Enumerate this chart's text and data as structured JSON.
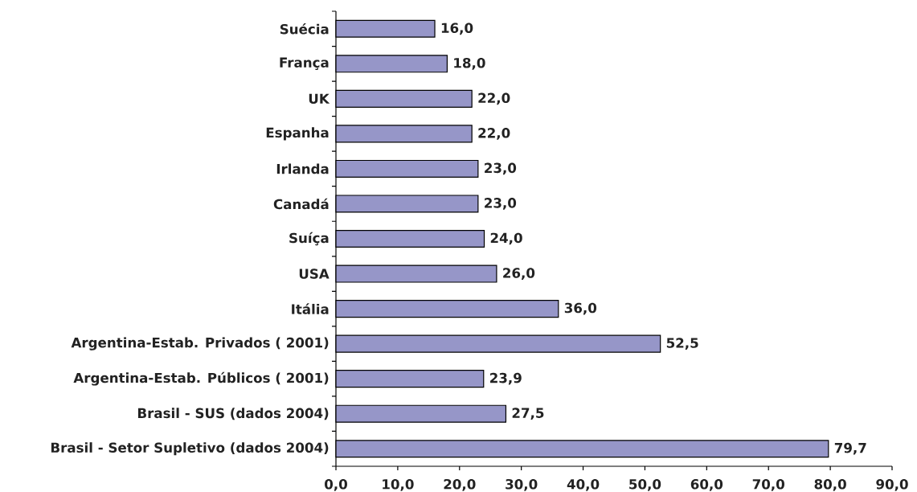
{
  "chart_data": {
    "type": "bar",
    "orientation": "horizontal",
    "categories": [
      "Suécia",
      "França",
      "UK",
      "Espanha",
      "Irlanda",
      "Canadá",
      "Suíça",
      "USA",
      "Itália",
      "Argentina-Estab. Privados ( 2001)",
      "Argentina-Estab. Públicos ( 2001)",
      "Brasil - SUS (dados 2004)",
      "Brasil - Setor Supletivo (dados 2004)"
    ],
    "values": [
      16,
      18,
      22,
      22,
      23,
      23,
      24,
      26,
      36,
      52.5,
      23.9,
      27.5,
      79.7
    ],
    "value_labels": [
      "16,0",
      "18,0",
      "22,0",
      "22,0",
      "23,0",
      "23,0",
      "24,0",
      "26,0",
      "36,0",
      "52,5",
      "23,9",
      "27,5",
      "79,7"
    ],
    "color": "#9696c8",
    "xlim": [
      0,
      90
    ],
    "xticks": [
      {
        "value": 0,
        "label": "0,0"
      },
      {
        "value": 10,
        "label": "10,0"
      },
      {
        "value": 20,
        "label": "20,0"
      },
      {
        "value": 30,
        "label": "30,0"
      },
      {
        "value": 40,
        "label": "40,0"
      },
      {
        "value": 50,
        "label": "50,0"
      },
      {
        "value": 60,
        "label": "60,0"
      },
      {
        "value": 70,
        "label": "70,0"
      },
      {
        "value": 80,
        "label": "80,0"
      },
      {
        "value": 90,
        "label": "90,0"
      }
    ]
  }
}
